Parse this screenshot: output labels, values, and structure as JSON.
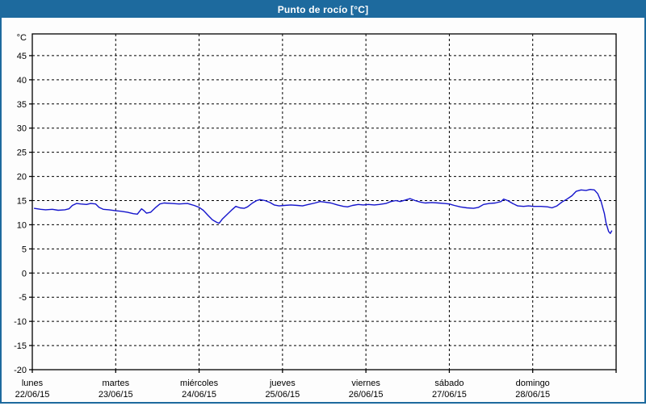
{
  "window": {
    "title": "Punto de rocío [°C]",
    "title_bar_color": "#1d6a9e",
    "border_color": "#1d6a9e"
  },
  "chart_data": {
    "type": "line",
    "title": "Punto de rocío [°C]",
    "y_unit_label": "°C",
    "ylabel": "Punto de rocío",
    "y_ticks": [
      45,
      40,
      35,
      30,
      25,
      20,
      15,
      10,
      5,
      0,
      -5,
      -10,
      -15,
      -20
    ],
    "ylim": [
      -20,
      49.5
    ],
    "grid": "dashed",
    "legend": "none",
    "line_color": "#1414cc",
    "axis_color": "#000000",
    "x_days_span": 7,
    "x_axis_days": [
      {
        "name": "lunes",
        "date": "22/06/15"
      },
      {
        "name": "martes",
        "date": "23/06/15"
      },
      {
        "name": "miércoles",
        "date": "24/06/15"
      },
      {
        "name": "jueves",
        "date": "25/06/15"
      },
      {
        "name": "viernes",
        "date": "26/06/15"
      },
      {
        "name": "sábado",
        "date": "27/06/15"
      },
      {
        "name": "domingo",
        "date": "28/06/15"
      }
    ],
    "series": [
      {
        "name": "Punto de rocío [°C]",
        "points": [
          [
            0.02,
            13.4
          ],
          [
            0.1,
            13.2
          ],
          [
            0.16,
            13.1
          ],
          [
            0.24,
            13.2
          ],
          [
            0.31,
            13.0
          ],
          [
            0.39,
            13.1
          ],
          [
            0.44,
            13.3
          ],
          [
            0.48,
            14.0
          ],
          [
            0.53,
            14.4
          ],
          [
            0.58,
            14.3
          ],
          [
            0.65,
            14.2
          ],
          [
            0.7,
            14.4
          ],
          [
            0.76,
            14.3
          ],
          [
            0.8,
            13.6
          ],
          [
            0.85,
            13.2
          ],
          [
            0.92,
            13.1
          ],
          [
            1.0,
            12.9
          ],
          [
            1.06,
            12.8
          ],
          [
            1.14,
            12.6
          ],
          [
            1.21,
            12.3
          ],
          [
            1.26,
            12.2
          ],
          [
            1.31,
            13.3
          ],
          [
            1.34,
            12.9
          ],
          [
            1.37,
            12.4
          ],
          [
            1.42,
            12.6
          ],
          [
            1.48,
            13.6
          ],
          [
            1.53,
            14.3
          ],
          [
            1.58,
            14.5
          ],
          [
            1.67,
            14.4
          ],
          [
            1.76,
            14.3
          ],
          [
            1.86,
            14.4
          ],
          [
            1.94,
            14.0
          ],
          [
            2.0,
            13.6
          ],
          [
            2.05,
            13.0
          ],
          [
            2.11,
            11.9
          ],
          [
            2.16,
            11.0
          ],
          [
            2.21,
            10.5
          ],
          [
            2.24,
            10.3
          ],
          [
            2.28,
            11.2
          ],
          [
            2.34,
            12.2
          ],
          [
            2.4,
            13.2
          ],
          [
            2.44,
            13.8
          ],
          [
            2.49,
            13.5
          ],
          [
            2.54,
            13.4
          ],
          [
            2.58,
            13.7
          ],
          [
            2.64,
            14.5
          ],
          [
            2.69,
            15.0
          ],
          [
            2.73,
            15.2
          ],
          [
            2.79,
            15.0
          ],
          [
            2.85,
            14.6
          ],
          [
            2.9,
            14.1
          ],
          [
            2.96,
            13.9
          ],
          [
            3.02,
            14.0
          ],
          [
            3.1,
            14.1
          ],
          [
            3.18,
            14.0
          ],
          [
            3.24,
            13.9
          ],
          [
            3.31,
            14.2
          ],
          [
            3.39,
            14.5
          ],
          [
            3.45,
            14.8
          ],
          [
            3.5,
            14.7
          ],
          [
            3.58,
            14.5
          ],
          [
            3.66,
            14.1
          ],
          [
            3.73,
            13.8
          ],
          [
            3.78,
            13.7
          ],
          [
            3.84,
            14.0
          ],
          [
            3.91,
            14.2
          ],
          [
            3.97,
            14.1
          ],
          [
            4.03,
            14.2
          ],
          [
            4.1,
            14.1
          ],
          [
            4.16,
            14.2
          ],
          [
            4.24,
            14.4
          ],
          [
            4.3,
            14.8
          ],
          [
            4.36,
            15.0
          ],
          [
            4.41,
            14.8
          ],
          [
            4.47,
            15.1
          ],
          [
            4.53,
            15.4
          ],
          [
            4.59,
            15.0
          ],
          [
            4.65,
            14.7
          ],
          [
            4.71,
            14.5
          ],
          [
            4.79,
            14.6
          ],
          [
            4.87,
            14.5
          ],
          [
            4.94,
            14.4
          ],
          [
            5.0,
            14.3
          ],
          [
            5.06,
            14.0
          ],
          [
            5.13,
            13.7
          ],
          [
            5.21,
            13.5
          ],
          [
            5.29,
            13.4
          ],
          [
            5.35,
            13.6
          ],
          [
            5.41,
            14.2
          ],
          [
            5.48,
            14.4
          ],
          [
            5.55,
            14.5
          ],
          [
            5.62,
            14.8
          ],
          [
            5.65,
            15.3
          ],
          [
            5.7,
            15.0
          ],
          [
            5.76,
            14.4
          ],
          [
            5.82,
            13.9
          ],
          [
            5.89,
            13.8
          ],
          [
            5.95,
            13.9
          ],
          [
            6.01,
            13.8
          ],
          [
            6.1,
            13.8
          ],
          [
            6.18,
            13.7
          ],
          [
            6.23,
            13.5
          ],
          [
            6.29,
            13.9
          ],
          [
            6.35,
            14.7
          ],
          [
            6.41,
            15.3
          ],
          [
            6.47,
            16.0
          ],
          [
            6.52,
            16.9
          ],
          [
            6.58,
            17.2
          ],
          [
            6.64,
            17.1
          ],
          [
            6.69,
            17.3
          ],
          [
            6.74,
            17.2
          ],
          [
            6.78,
            16.4
          ],
          [
            6.82,
            14.8
          ],
          [
            6.86,
            12.3
          ],
          [
            6.88,
            10.3
          ],
          [
            6.91,
            8.6
          ],
          [
            6.93,
            8.2
          ],
          [
            6.95,
            8.8
          ]
        ]
      }
    ]
  }
}
